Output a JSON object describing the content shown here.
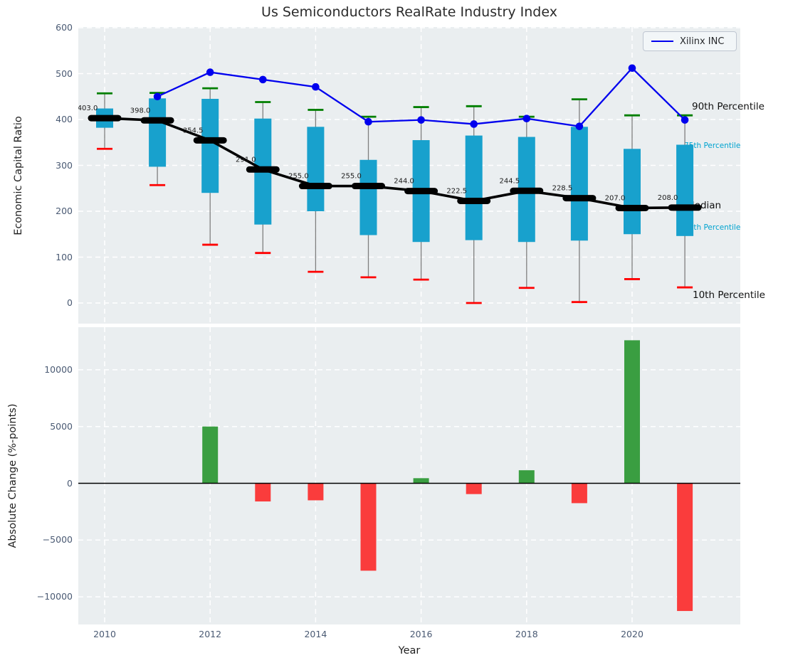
{
  "figure": {
    "title": "Us Semiconductors RealRate Industry Index"
  },
  "colors": {
    "axes_background": "#eaeef0",
    "grid": "#ffffff",
    "box_fill": "#18a1cd",
    "whisker": "#7f7f7f",
    "cap_90th": "#007f00",
    "cap_10th": "#ff0000",
    "median": "#000000",
    "xilinx_line": "#0000ee",
    "bar_positive": "#3a9e41",
    "bar_negative": "#fa3c3c",
    "tick_label": "#4a5a73",
    "cyan_annotation": "#00a3cf"
  },
  "chart_data": [
    {
      "type": "boxplot",
      "title": "Us Semiconductors RealRate Industry Index",
      "ylabel": "Economic Capital Ratio",
      "legend": [
        {
          "label": "Xilinx INC",
          "color": "#0000ee"
        }
      ],
      "grid": true,
      "ylim": [
        -45,
        601
      ],
      "yticks": [
        0,
        100,
        200,
        300,
        400,
        500,
        600
      ],
      "ytick_labels": [
        "0",
        "100",
        "200",
        "300",
        "400",
        "500",
        "600"
      ],
      "xgrid_years": [
        2010,
        2012,
        2014,
        2016,
        2018,
        2020
      ],
      "years": [
        2010,
        2011,
        2012,
        2013,
        2014,
        2015,
        2016,
        2017,
        2018,
        2019,
        2020,
        2021
      ],
      "median": [
        403,
        398,
        354.5,
        291,
        255,
        255,
        244,
        222.5,
        244.5,
        228.5,
        207,
        208
      ],
      "median_labels": [
        "403.0",
        "398.0",
        "354.5",
        "291.0",
        "255.0",
        "255.0",
        "244.0",
        "222.5",
        "244.5",
        "228.5",
        "207.0",
        "208.0"
      ],
      "p75": [
        424,
        446,
        445,
        402,
        384,
        312,
        355,
        365,
        362,
        384,
        336,
        345
      ],
      "p25": [
        382,
        297,
        240,
        171,
        200,
        148,
        133,
        137,
        133,
        136,
        150,
        146
      ],
      "p90": [
        457,
        458,
        468,
        438,
        421,
        406,
        427,
        429,
        406,
        444,
        409,
        409
      ],
      "p10": [
        336,
        257,
        127,
        109,
        68,
        56,
        51,
        0,
        33,
        2,
        52,
        34
      ],
      "series": [
        {
          "name": "Xilinx INC",
          "x": [
            2011,
            2012,
            2013,
            2014,
            2015,
            2016,
            2017,
            2018,
            2019,
            2020,
            2021
          ],
          "values": [
            450,
            503,
            487,
            471,
            395,
            399,
            390,
            402,
            385,
            512,
            399
          ]
        }
      ],
      "annotations": [
        {
          "text": "90th Percentile",
          "style": "black"
        },
        {
          "text": "75th Percentile",
          "style": "cyan"
        },
        {
          "text": "Median",
          "style": "black"
        },
        {
          "text": "25th Percentile",
          "style": "cyan"
        },
        {
          "text": "10th Percentile",
          "style": "black"
        }
      ]
    },
    {
      "type": "bar",
      "ylabel": "Absolute Change (%-points)",
      "xlabel": "Year",
      "grid": true,
      "ylim": [
        -12450,
        13750
      ],
      "yticks": [
        -10000,
        -5000,
        0,
        5000,
        10000
      ],
      "ytick_labels": [
        "−10000",
        "−5000",
        "0",
        "5000",
        "10000"
      ],
      "xticks": [
        2010,
        2012,
        2014,
        2016,
        2018,
        2020
      ],
      "xtick_labels": [
        "2010",
        "2012",
        "2014",
        "2016",
        "2018",
        "2020"
      ],
      "years": [
        2010,
        2011,
        2012,
        2013,
        2014,
        2015,
        2016,
        2017,
        2018,
        2019,
        2020,
        2021
      ],
      "values": [
        null,
        null,
        5000,
        -1600,
        -1500,
        -7700,
        450,
        -950,
        1150,
        -1750,
        12600,
        -11250
      ]
    }
  ]
}
